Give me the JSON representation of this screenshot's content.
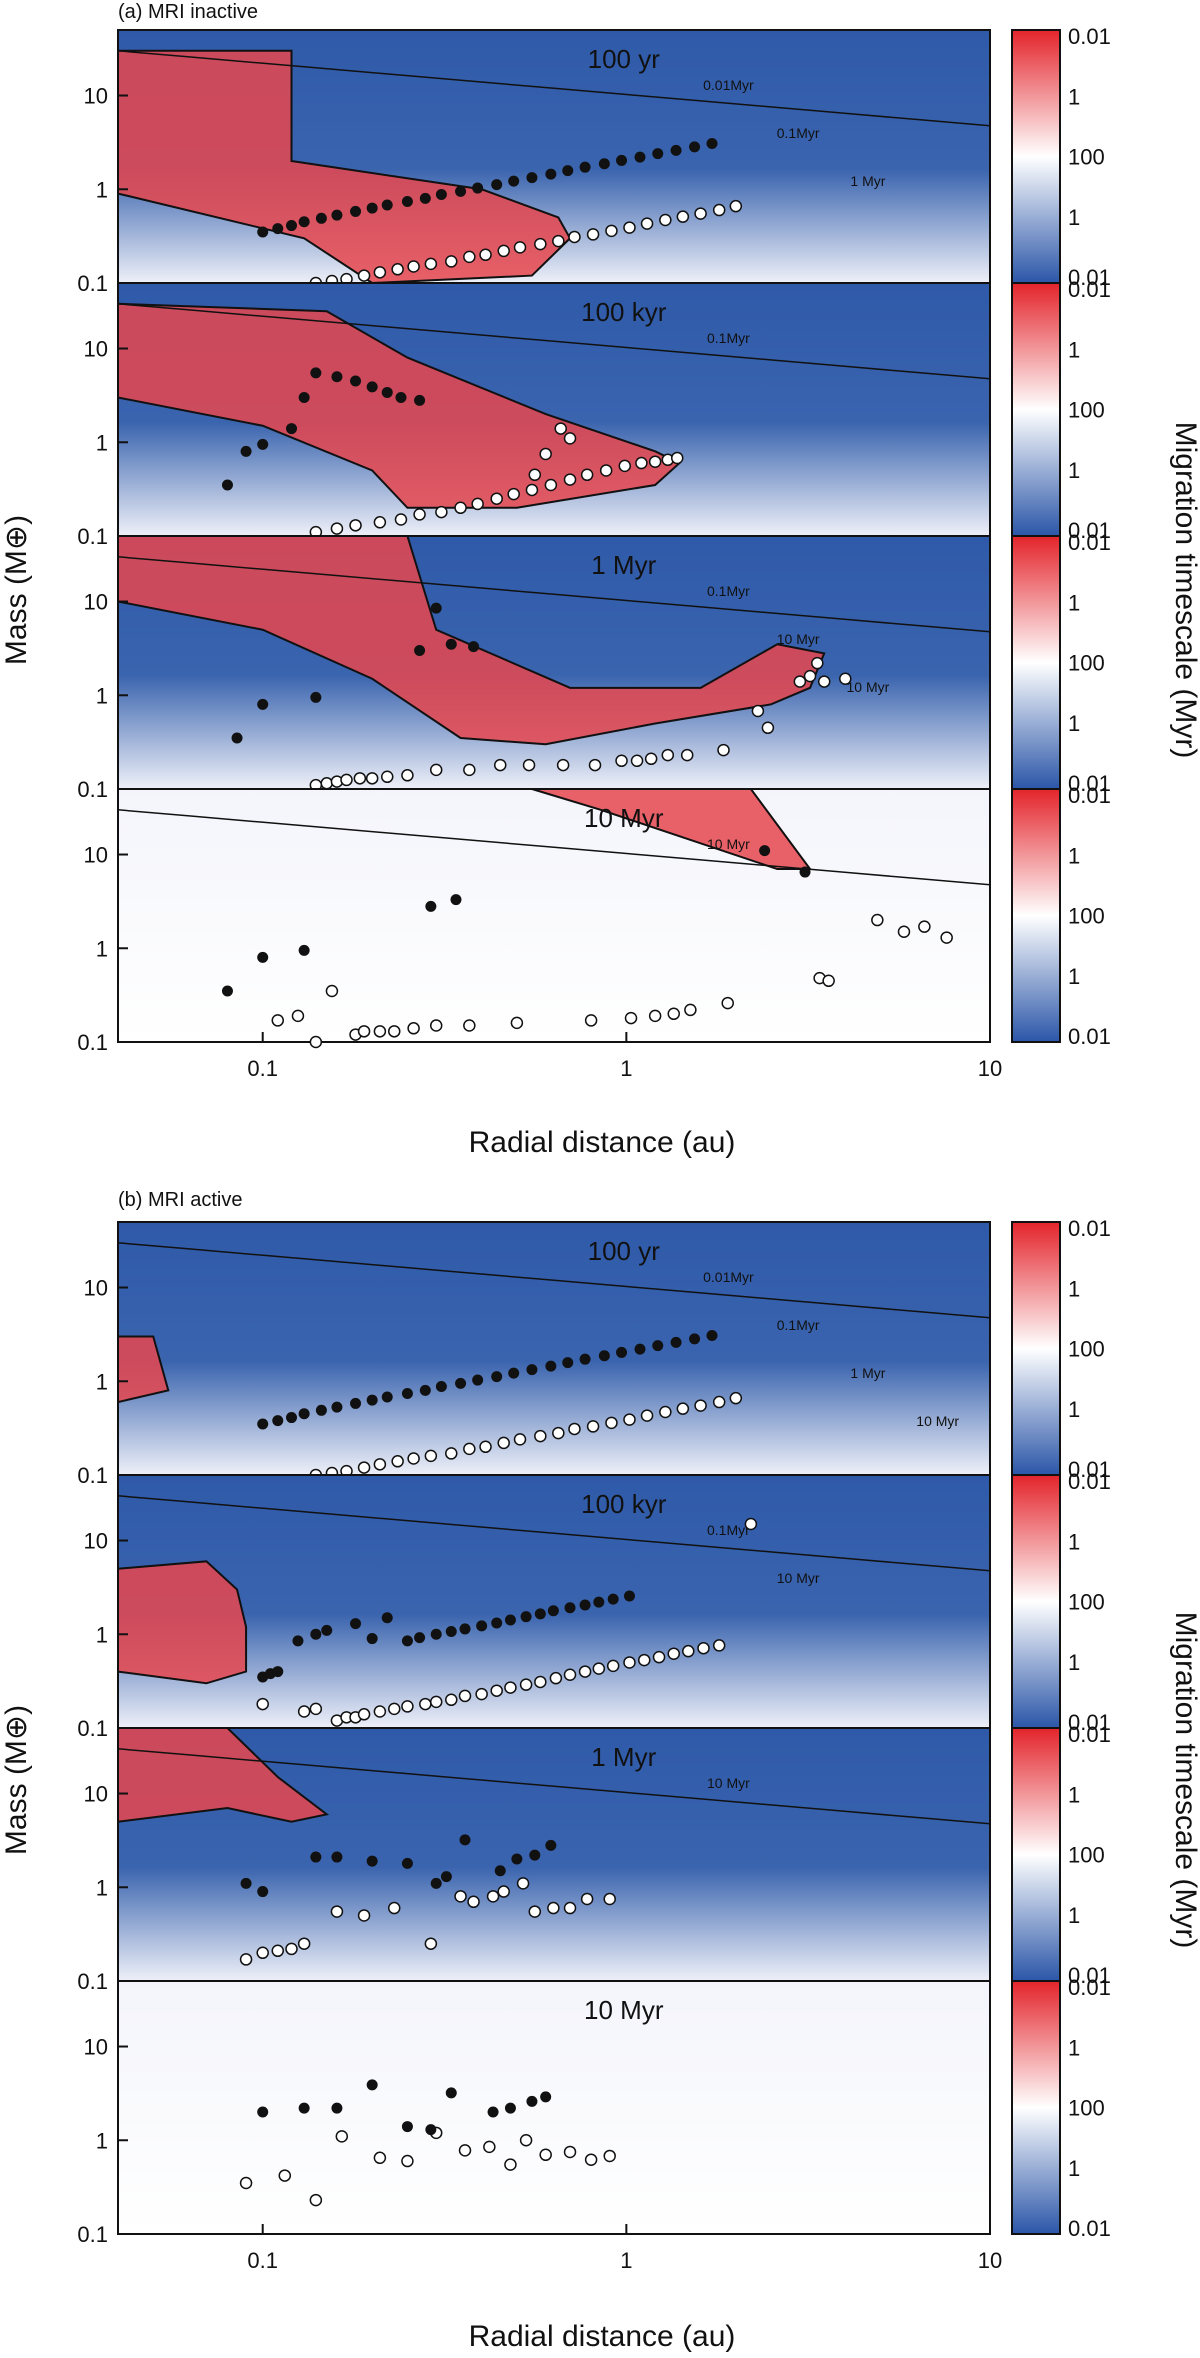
{
  "figure": {
    "ylabel": "Mass (M⊕)",
    "xlabel": "Radial distance (au)",
    "colorbar_label": "Migration timescale (Myr)",
    "x_ticks": [
      "0.1",
      "1",
      "10"
    ],
    "y_ticks": [
      "10",
      "1",
      "0.1"
    ],
    "colorbar_ticks": [
      "0.01",
      "1",
      "100",
      "1",
      "0.01"
    ]
  },
  "colors": {
    "inward_fast": "#2b56a8",
    "outward_fast": "#e3242b",
    "slow": "#ffffff"
  },
  "chart_data": [
    {
      "type": "heatmap",
      "group": "(a) MRI inactive",
      "title": "100 yr",
      "xscale": "log",
      "yscale": "log",
      "xlim": [
        0.04,
        10
      ],
      "ylim": [
        0.1,
        50
      ],
      "contour_labels": [
        "0.01Myr",
        "0.1Myr",
        "1 Myr"
      ],
      "filled_points": [
        [
          0.1,
          0.35
        ],
        [
          0.11,
          0.38
        ],
        [
          0.12,
          0.41
        ],
        [
          0.13,
          0.45
        ],
        [
          0.145,
          0.49
        ],
        [
          0.16,
          0.53
        ],
        [
          0.18,
          0.58
        ],
        [
          0.2,
          0.63
        ],
        [
          0.22,
          0.68
        ],
        [
          0.25,
          0.74
        ],
        [
          0.28,
          0.8
        ],
        [
          0.31,
          0.88
        ],
        [
          0.35,
          0.95
        ],
        [
          0.39,
          1.03
        ],
        [
          0.44,
          1.12
        ],
        [
          0.49,
          1.22
        ],
        [
          0.55,
          1.33
        ],
        [
          0.62,
          1.45
        ],
        [
          0.69,
          1.58
        ],
        [
          0.77,
          1.72
        ],
        [
          0.87,
          1.87
        ],
        [
          0.97,
          2.03
        ],
        [
          1.09,
          2.2
        ],
        [
          1.22,
          2.4
        ],
        [
          1.37,
          2.6
        ],
        [
          1.54,
          2.83
        ],
        [
          1.72,
          3.08
        ]
      ],
      "open_points": [
        [
          0.14,
          0.1
        ],
        [
          0.155,
          0.105
        ],
        [
          0.17,
          0.11
        ],
        [
          0.19,
          0.12
        ],
        [
          0.21,
          0.13
        ],
        [
          0.235,
          0.14
        ],
        [
          0.26,
          0.15
        ],
        [
          0.29,
          0.16
        ],
        [
          0.33,
          0.17
        ],
        [
          0.37,
          0.19
        ],
        [
          0.41,
          0.2
        ],
        [
          0.46,
          0.22
        ],
        [
          0.51,
          0.24
        ],
        [
          0.58,
          0.26
        ],
        [
          0.65,
          0.28
        ],
        [
          0.72,
          0.31
        ],
        [
          0.81,
          0.33
        ],
        [
          0.91,
          0.36
        ],
        [
          1.02,
          0.39
        ],
        [
          1.14,
          0.43
        ],
        [
          1.28,
          0.47
        ],
        [
          1.43,
          0.51
        ],
        [
          1.6,
          0.55
        ],
        [
          1.8,
          0.6
        ],
        [
          2.0,
          0.66
        ]
      ]
    },
    {
      "type": "heatmap",
      "group": "(a) MRI inactive",
      "title": "100 kyr",
      "xscale": "log",
      "yscale": "log",
      "xlim": [
        0.04,
        10
      ],
      "ylim": [
        0.1,
        50
      ],
      "contour_labels": [
        "0.1Myr"
      ],
      "filled_points": [
        [
          0.08,
          0.35
        ],
        [
          0.09,
          0.8
        ],
        [
          0.1,
          0.95
        ],
        [
          0.12,
          1.4
        ],
        [
          0.13,
          3.0
        ],
        [
          0.14,
          5.5
        ],
        [
          0.16,
          5.0
        ],
        [
          0.18,
          4.5
        ],
        [
          0.2,
          3.9
        ],
        [
          0.22,
          3.4
        ],
        [
          0.24,
          3.0
        ],
        [
          0.27,
          2.8
        ]
      ],
      "open_points": [
        [
          0.14,
          0.11
        ],
        [
          0.16,
          0.12
        ],
        [
          0.18,
          0.13
        ],
        [
          0.21,
          0.14
        ],
        [
          0.24,
          0.15
        ],
        [
          0.27,
          0.17
        ],
        [
          0.31,
          0.18
        ],
        [
          0.35,
          0.2
        ],
        [
          0.39,
          0.22
        ],
        [
          0.44,
          0.25
        ],
        [
          0.49,
          0.28
        ],
        [
          0.55,
          0.31
        ],
        [
          0.62,
          0.35
        ],
        [
          0.7,
          0.4
        ],
        [
          0.78,
          0.45
        ],
        [
          0.88,
          0.5
        ],
        [
          0.99,
          0.56
        ],
        [
          1.1,
          0.6
        ],
        [
          1.2,
          0.62
        ],
        [
          1.3,
          0.65
        ],
        [
          1.38,
          0.68
        ],
        [
          0.7,
          1.1
        ],
        [
          0.66,
          1.4
        ],
        [
          0.6,
          0.75
        ],
        [
          0.56,
          0.45
        ]
      ]
    },
    {
      "type": "heatmap",
      "group": "(a) MRI inactive",
      "title": "1 Myr",
      "xscale": "log",
      "yscale": "log",
      "xlim": [
        0.04,
        10
      ],
      "ylim": [
        0.1,
        50
      ],
      "contour_labels": [
        "0.1Myr",
        "10 Myr",
        "10 Myr"
      ],
      "filled_points": [
        [
          0.085,
          0.35
        ],
        [
          0.1,
          0.8
        ],
        [
          0.14,
          0.95
        ],
        [
          0.27,
          3.0
        ],
        [
          0.3,
          8.5
        ],
        [
          0.33,
          3.5
        ],
        [
          0.38,
          3.3
        ]
      ],
      "open_points": [
        [
          0.14,
          0.11
        ],
        [
          0.15,
          0.115
        ],
        [
          0.16,
          0.12
        ],
        [
          0.17,
          0.125
        ],
        [
          0.185,
          0.13
        ],
        [
          0.2,
          0.13
        ],
        [
          0.22,
          0.135
        ],
        [
          0.25,
          0.14
        ],
        [
          0.3,
          0.16
        ],
        [
          0.37,
          0.16
        ],
        [
          0.45,
          0.18
        ],
        [
          0.54,
          0.18
        ],
        [
          0.67,
          0.18
        ],
        [
          0.82,
          0.18
        ],
        [
          0.97,
          0.2
        ],
        [
          1.07,
          0.2
        ],
        [
          1.17,
          0.21
        ],
        [
          1.3,
          0.23
        ],
        [
          1.47,
          0.23
        ],
        [
          1.85,
          0.26
        ],
        [
          2.3,
          0.68
        ],
        [
          2.45,
          0.45
        ],
        [
          3.0,
          1.4
        ],
        [
          3.2,
          1.6
        ],
        [
          3.5,
          1.4
        ],
        [
          3.35,
          2.2
        ],
        [
          4.0,
          1.5
        ]
      ]
    },
    {
      "type": "heatmap",
      "group": "(a) MRI inactive",
      "title": "10 Myr",
      "xscale": "log",
      "yscale": "log",
      "xlim": [
        0.04,
        10
      ],
      "ylim": [
        0.1,
        50
      ],
      "contour_labels": [
        "10 Myr"
      ],
      "filled_points": [
        [
          0.08,
          0.35
        ],
        [
          0.1,
          0.8
        ],
        [
          0.13,
          0.95
        ],
        [
          0.29,
          2.8
        ],
        [
          0.34,
          3.3
        ],
        [
          2.4,
          11
        ],
        [
          3.1,
          6.5
        ]
      ],
      "open_points": [
        [
          0.11,
          0.17
        ],
        [
          0.125,
          0.19
        ],
        [
          0.14,
          0.1
        ],
        [
          0.155,
          0.35
        ],
        [
          0.18,
          0.12
        ],
        [
          0.19,
          0.13
        ],
        [
          0.21,
          0.13
        ],
        [
          0.23,
          0.13
        ],
        [
          0.26,
          0.14
        ],
        [
          0.3,
          0.15
        ],
        [
          0.37,
          0.15
        ],
        [
          0.5,
          0.16
        ],
        [
          0.8,
          0.17
        ],
        [
          1.03,
          0.18
        ],
        [
          1.2,
          0.19
        ],
        [
          1.35,
          0.2
        ],
        [
          1.5,
          0.22
        ],
        [
          1.9,
          0.26
        ],
        [
          3.4,
          0.48
        ],
        [
          3.6,
          0.45
        ],
        [
          4.9,
          2.0
        ],
        [
          5.8,
          1.5
        ],
        [
          6.6,
          1.7
        ],
        [
          7.6,
          1.3
        ]
      ]
    },
    {
      "type": "heatmap",
      "group": "(b) MRI active",
      "title": "100 yr",
      "xscale": "log",
      "yscale": "log",
      "xlim": [
        0.04,
        10
      ],
      "ylim": [
        0.1,
        50
      ],
      "contour_labels": [
        "0.01Myr",
        "0.1Myr",
        "1 Myr",
        "10 Myr"
      ],
      "filled_points": [
        [
          0.1,
          0.35
        ],
        [
          0.11,
          0.38
        ],
        [
          0.12,
          0.41
        ],
        [
          0.13,
          0.45
        ],
        [
          0.145,
          0.49
        ],
        [
          0.16,
          0.53
        ],
        [
          0.18,
          0.58
        ],
        [
          0.2,
          0.63
        ],
        [
          0.22,
          0.68
        ],
        [
          0.25,
          0.74
        ],
        [
          0.28,
          0.8
        ],
        [
          0.31,
          0.88
        ],
        [
          0.35,
          0.95
        ],
        [
          0.39,
          1.03
        ],
        [
          0.44,
          1.12
        ],
        [
          0.49,
          1.22
        ],
        [
          0.55,
          1.33
        ],
        [
          0.62,
          1.45
        ],
        [
          0.69,
          1.58
        ],
        [
          0.77,
          1.72
        ],
        [
          0.87,
          1.87
        ],
        [
          0.97,
          2.03
        ],
        [
          1.09,
          2.2
        ],
        [
          1.22,
          2.4
        ],
        [
          1.37,
          2.6
        ],
        [
          1.54,
          2.83
        ],
        [
          1.72,
          3.08
        ]
      ],
      "open_points": [
        [
          0.14,
          0.1
        ],
        [
          0.155,
          0.105
        ],
        [
          0.17,
          0.11
        ],
        [
          0.19,
          0.12
        ],
        [
          0.21,
          0.13
        ],
        [
          0.235,
          0.14
        ],
        [
          0.26,
          0.15
        ],
        [
          0.29,
          0.16
        ],
        [
          0.33,
          0.17
        ],
        [
          0.37,
          0.19
        ],
        [
          0.41,
          0.2
        ],
        [
          0.46,
          0.22
        ],
        [
          0.51,
          0.24
        ],
        [
          0.58,
          0.26
        ],
        [
          0.65,
          0.28
        ],
        [
          0.72,
          0.31
        ],
        [
          0.81,
          0.33
        ],
        [
          0.91,
          0.36
        ],
        [
          1.02,
          0.39
        ],
        [
          1.14,
          0.43
        ],
        [
          1.28,
          0.47
        ],
        [
          1.43,
          0.51
        ],
        [
          1.6,
          0.55
        ],
        [
          1.8,
          0.6
        ],
        [
          2.0,
          0.66
        ]
      ]
    },
    {
      "type": "heatmap",
      "group": "(b) MRI active",
      "title": "100 kyr",
      "xscale": "log",
      "yscale": "log",
      "xlim": [
        0.04,
        10
      ],
      "ylim": [
        0.1,
        50
      ],
      "contour_labels": [
        "0.1Myr",
        "10 Myr"
      ],
      "filled_points": [
        [
          0.1,
          0.35
        ],
        [
          0.105,
          0.38
        ],
        [
          0.11,
          0.4
        ],
        [
          0.125,
          0.85
        ],
        [
          0.14,
          1.0
        ],
        [
          0.15,
          1.1
        ],
        [
          0.18,
          1.3
        ],
        [
          0.2,
          0.9
        ],
        [
          0.22,
          1.5
        ],
        [
          0.25,
          0.85
        ],
        [
          0.27,
          0.92
        ],
        [
          0.3,
          1.0
        ],
        [
          0.33,
          1.07
        ],
        [
          0.36,
          1.14
        ],
        [
          0.4,
          1.23
        ],
        [
          0.44,
          1.32
        ],
        [
          0.48,
          1.42
        ],
        [
          0.53,
          1.54
        ],
        [
          0.58,
          1.65
        ],
        [
          0.63,
          1.78
        ],
        [
          0.7,
          1.92
        ],
        [
          0.77,
          2.05
        ],
        [
          0.84,
          2.2
        ],
        [
          0.92,
          2.37
        ],
        [
          1.02,
          2.56
        ]
      ],
      "open_points": [
        [
          0.1,
          0.18
        ],
        [
          0.13,
          0.15
        ],
        [
          0.14,
          0.16
        ],
        [
          0.16,
          0.12
        ],
        [
          0.17,
          0.13
        ],
        [
          0.18,
          0.13
        ],
        [
          0.19,
          0.14
        ],
        [
          0.21,
          0.15
        ],
        [
          0.23,
          0.16
        ],
        [
          0.25,
          0.17
        ],
        [
          0.28,
          0.18
        ],
        [
          0.3,
          0.19
        ],
        [
          0.33,
          0.2
        ],
        [
          0.36,
          0.22
        ],
        [
          0.4,
          0.23
        ],
        [
          0.44,
          0.25
        ],
        [
          0.48,
          0.27
        ],
        [
          0.53,
          0.29
        ],
        [
          0.58,
          0.31
        ],
        [
          0.64,
          0.34
        ],
        [
          0.7,
          0.37
        ],
        [
          0.77,
          0.4
        ],
        [
          0.84,
          0.43
        ],
        [
          0.92,
          0.46
        ],
        [
          1.02,
          0.5
        ],
        [
          1.12,
          0.53
        ],
        [
          1.23,
          0.57
        ],
        [
          1.35,
          0.62
        ],
        [
          1.48,
          0.66
        ],
        [
          1.63,
          0.71
        ],
        [
          1.8,
          0.76
        ],
        [
          2.2,
          15
        ]
      ]
    },
    {
      "type": "heatmap",
      "group": "(b) MRI active",
      "title": "1 Myr",
      "xscale": "log",
      "yscale": "log",
      "xlim": [
        0.04,
        10
      ],
      "ylim": [
        0.1,
        50
      ],
      "contour_labels": [
        "10 Myr"
      ],
      "filled_points": [
        [
          0.09,
          1.1
        ],
        [
          0.1,
          0.9
        ],
        [
          0.14,
          2.1
        ],
        [
          0.16,
          2.1
        ],
        [
          0.2,
          1.9
        ],
        [
          0.25,
          1.8
        ],
        [
          0.3,
          1.1
        ],
        [
          0.32,
          1.3
        ],
        [
          0.36,
          3.2
        ],
        [
          0.45,
          1.5
        ],
        [
          0.5,
          2.0
        ],
        [
          0.56,
          2.2
        ],
        [
          0.62,
          2.8
        ]
      ],
      "open_points": [
        [
          0.09,
          0.17
        ],
        [
          0.1,
          0.2
        ],
        [
          0.11,
          0.21
        ],
        [
          0.12,
          0.22
        ],
        [
          0.13,
          0.25
        ],
        [
          0.16,
          0.55
        ],
        [
          0.19,
          0.5
        ],
        [
          0.23,
          0.6
        ],
        [
          0.29,
          0.25
        ],
        [
          0.35,
          0.8
        ],
        [
          0.38,
          0.7
        ],
        [
          0.43,
          0.8
        ],
        [
          0.46,
          0.9
        ],
        [
          0.52,
          1.1
        ],
        [
          0.56,
          0.55
        ],
        [
          0.63,
          0.6
        ],
        [
          0.7,
          0.6
        ],
        [
          0.78,
          0.75
        ],
        [
          0.9,
          0.75
        ]
      ]
    },
    {
      "type": "heatmap",
      "group": "(b) MRI active",
      "title": "10 Myr",
      "xscale": "log",
      "yscale": "log",
      "xlim": [
        0.04,
        10
      ],
      "ylim": [
        0.1,
        50
      ],
      "contour_labels": [],
      "filled_points": [
        [
          0.1,
          2.0
        ],
        [
          0.13,
          2.2
        ],
        [
          0.16,
          2.2
        ],
        [
          0.2,
          3.9
        ],
        [
          0.25,
          1.4
        ],
        [
          0.29,
          1.3
        ],
        [
          0.33,
          3.2
        ],
        [
          0.43,
          2.0
        ],
        [
          0.48,
          2.2
        ],
        [
          0.55,
          2.6
        ],
        [
          0.6,
          2.9
        ]
      ],
      "open_points": [
        [
          0.09,
          0.35
        ],
        [
          0.115,
          0.42
        ],
        [
          0.14,
          0.23
        ],
        [
          0.165,
          1.1
        ],
        [
          0.21,
          0.65
        ],
        [
          0.25,
          0.6
        ],
        [
          0.3,
          1.2
        ],
        [
          0.36,
          0.78
        ],
        [
          0.42,
          0.85
        ],
        [
          0.48,
          0.55
        ],
        [
          0.53,
          1.0
        ],
        [
          0.6,
          0.7
        ],
        [
          0.7,
          0.75
        ],
        [
          0.8,
          0.62
        ],
        [
          0.9,
          0.68
        ]
      ]
    }
  ]
}
